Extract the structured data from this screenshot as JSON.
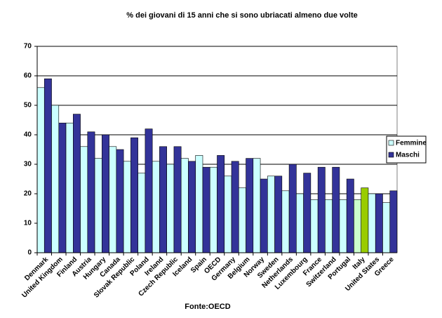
{
  "chart_data": {
    "type": "bar",
    "title": "% dei giovani di 15 anni che si sono ubriacati almeno due volte",
    "source": "Fonte:OECD",
    "categories": [
      "Denmark",
      "United Kingdom",
      "Finland",
      "Austria",
      "Hungary",
      "Canada",
      "Slovak Republic",
      "Poland",
      "Ireland",
      "Czech Republic",
      "Iceland",
      "Spain",
      "OECD",
      "Germany",
      "Belgium",
      "Norway",
      "Sweden",
      "Netherlands",
      "Luxembourg",
      "France",
      "Switzerland",
      "Portugal",
      "Italy",
      "United States",
      "Greece"
    ],
    "series": [
      {
        "name": "Femmine",
        "color": "#ccffff",
        "values": [
          56,
          50,
          44,
          36,
          32,
          36,
          31,
          27,
          31,
          30,
          32,
          33,
          29,
          26,
          22,
          32,
          26,
          21,
          20,
          18,
          18,
          18,
          18,
          20,
          17
        ],
        "colors": [
          "#ccffff",
          "#ccffff",
          "#ccffff",
          "#ccffff",
          "#ccffff",
          "#ccffff",
          "#ccffff",
          "#ccffff",
          "#ccffff",
          "#ccffff",
          "#ccffff",
          "#ccffff",
          "#ccffff",
          "#ccffff",
          "#ccffff",
          "#ccffff",
          "#ccffff",
          "#ccffff",
          "#ccffff",
          "#ccffff",
          "#ccffff",
          "#ccffff",
          "#ccffcc",
          "#ccffff",
          "#ccffff"
        ]
      },
      {
        "name": "Maschi",
        "color": "#333399",
        "values": [
          59,
          44,
          47,
          41,
          40,
          35,
          39,
          42,
          36,
          36,
          31,
          29,
          33,
          31,
          32,
          25,
          26,
          30,
          27,
          29,
          29,
          25,
          22,
          20,
          21
        ],
        "colors": [
          "#333399",
          "#333399",
          "#333399",
          "#333399",
          "#333399",
          "#333399",
          "#333399",
          "#333399",
          "#333399",
          "#333399",
          "#333399",
          "#333399",
          "#333399",
          "#333399",
          "#333399",
          "#333399",
          "#333399",
          "#333399",
          "#333399",
          "#333399",
          "#333399",
          "#333399",
          "#99cc00",
          "#333399",
          "#333399"
        ]
      }
    ],
    "ylim": [
      0,
      70
    ],
    "yticks": [
      0,
      10,
      20,
      30,
      40,
      50,
      60,
      70
    ],
    "grid": true,
    "legend": "right"
  }
}
